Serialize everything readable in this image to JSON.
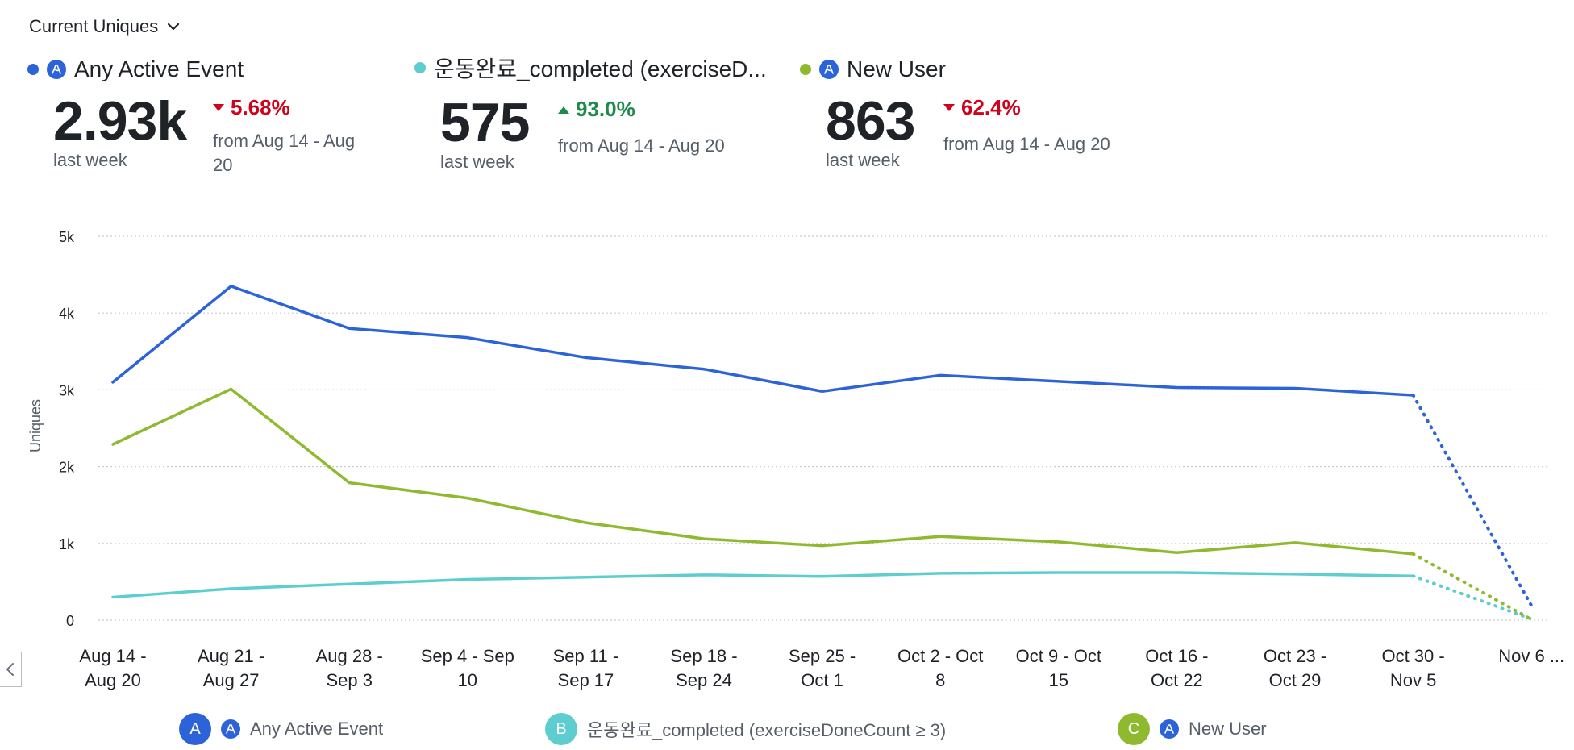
{
  "metric_selector": {
    "label": "Current Uniques",
    "icon": "chevron-down-icon"
  },
  "summary": [
    {
      "name": "Any Active Event",
      "color": "#2c63d9",
      "has_event_icon": true,
      "value": "2.93k",
      "caption": "last week",
      "change": "5.68%",
      "direction": "down",
      "compare": "from Aug 14 - Aug 20"
    },
    {
      "name": "운동완료_completed (exerciseD...",
      "color": "#5ecdd0",
      "has_event_icon": false,
      "value": "575",
      "caption": "last week",
      "change": "93.0%",
      "direction": "up",
      "compare": "from Aug 14 - Aug 20"
    },
    {
      "name": "New User",
      "color": "#8fba2f",
      "has_event_icon": true,
      "value": "863",
      "caption": "last week",
      "change": "62.4%",
      "direction": "down",
      "compare": "from Aug 14 - Aug 20"
    }
  ],
  "chart_data": {
    "type": "line",
    "ylabel": "Uniques",
    "ylim": [
      0,
      5000
    ],
    "yticks": [
      0,
      1000,
      2000,
      3000,
      4000,
      5000
    ],
    "ytick_labels": [
      "0",
      "1k",
      "2k",
      "3k",
      "4k",
      "5k"
    ],
    "grid": true,
    "categories": [
      "Aug 14 - Aug 20",
      "Aug 21 - Aug 27",
      "Aug 28 - Sep 3",
      "Sep 4 - Sep 10",
      "Sep 11 - Sep 17",
      "Sep 18 - Sep 24",
      "Sep 25 - Oct 1",
      "Oct 2 - Oct 8",
      "Oct 9 - Oct 15",
      "Oct 16 - Oct 22",
      "Oct 23 - Oct 29",
      "Oct 30 - Nov 5",
      "Nov 6 ..."
    ],
    "category_labels": [
      [
        "Aug 14 -",
        "Aug 20"
      ],
      [
        "Aug 21 -",
        "Aug 27"
      ],
      [
        "Aug 28 -",
        "Sep 3"
      ],
      [
        "Sep 4 - Sep",
        "10"
      ],
      [
        "Sep 11 -",
        "Sep 17"
      ],
      [
        "Sep 18 -",
        "Sep 24"
      ],
      [
        "Sep 25 -",
        "Oct 1"
      ],
      [
        "Oct 2 - Oct",
        "8"
      ],
      [
        "Oct 9 - Oct",
        "15"
      ],
      [
        "Oct 16 -",
        "Oct 22"
      ],
      [
        "Oct 23 -",
        "Oct 29"
      ],
      [
        "Oct 30 -",
        "Nov 5"
      ],
      [
        "Nov 6 ..."
      ]
    ],
    "incomplete_from_index": 11,
    "series": [
      {
        "name": "Any Active Event",
        "color": "#2c63d9",
        "values": [
          3100,
          4350,
          3800,
          3680,
          3420,
          3270,
          2980,
          3190,
          3110,
          3030,
          3020,
          2930,
          190
        ]
      },
      {
        "name": "운동완료_completed (exerciseDoneCount ≥ 3)",
        "color": "#5ecdd0",
        "values": [
          300,
          410,
          470,
          530,
          560,
          590,
          570,
          610,
          620,
          620,
          600,
          575,
          15
        ]
      },
      {
        "name": "New User",
        "color": "#8fba2f",
        "values": [
          2290,
          3010,
          1790,
          1590,
          1270,
          1060,
          970,
          1090,
          1020,
          880,
          1010,
          863,
          10
        ]
      }
    ]
  },
  "legend": [
    {
      "badge": "A",
      "label": "Any Active Event",
      "color": "#2c63d9",
      "has_event_icon": true
    },
    {
      "badge": "B",
      "label": "운동완료_completed (exerciseDoneCount ≥ 3)",
      "color": "#5ecdd0",
      "has_event_icon": false
    },
    {
      "badge": "C",
      "label": "New User",
      "color": "#8fba2f",
      "has_event_icon": true
    }
  ]
}
